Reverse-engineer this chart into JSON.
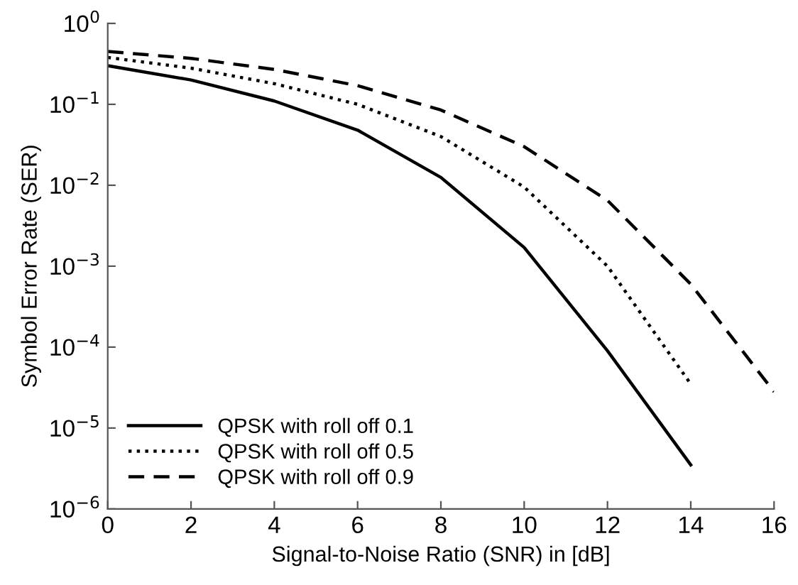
{
  "chart_data": {
    "type": "line",
    "xlabel": "Signal-to-Noise Ratio (SNR) in [dB]",
    "ylabel": "Symbol Error Rate (SER)",
    "log": "y",
    "grid": false,
    "legend": "bottom left",
    "marker": "none",
    "x": [
      0,
      2,
      4,
      6,
      8,
      10,
      12,
      14,
      16
    ],
    "xlim": [
      0,
      16
    ],
    "xticks": [
      0,
      2,
      4,
      6,
      8,
      10,
      12,
      14,
      16
    ],
    "ylim": [
      1e-06,
      1
    ],
    "yticks": [
      {
        "value": 1e-06,
        "label": "10$^{−6}$"
      },
      {
        "value": 1e-05,
        "label": "10$^{−5}$"
      },
      {
        "value": 0.0001,
        "label": "10$^{−4}$"
      },
      {
        "value": 0.001,
        "label": "10$^{−3}$"
      },
      {
        "value": 0.01,
        "label": "10$^{−2}$"
      },
      {
        "value": 0.1,
        "label": "10$^{−1}$"
      },
      {
        "value": 1,
        "label": "10$^{0}$"
      }
    ],
    "series": [
      {
        "name": "QPSK with roll off 0.1",
        "color": "#000000",
        "line_style": "solid",
        "values": [
          0.3,
          0.2,
          0.11,
          0.048,
          0.0125,
          0.0017,
          9e-05,
          3.5e-06,
          null
        ]
      },
      {
        "name": "QPSK with roll off 0.5",
        "color": "#000000",
        "line_style": "dotted",
        "values": [
          0.38,
          0.28,
          0.18,
          0.1,
          0.04,
          0.0095,
          0.001,
          3.5e-05,
          null
        ]
      },
      {
        "name": "QPSK with roll off 0.9",
        "color": "#000000",
        "line_style": "dashed",
        "values": [
          0.45,
          0.37,
          0.27,
          0.17,
          0.085,
          0.03,
          0.0065,
          0.0006,
          2.8e-05
        ]
      }
    ]
  }
}
